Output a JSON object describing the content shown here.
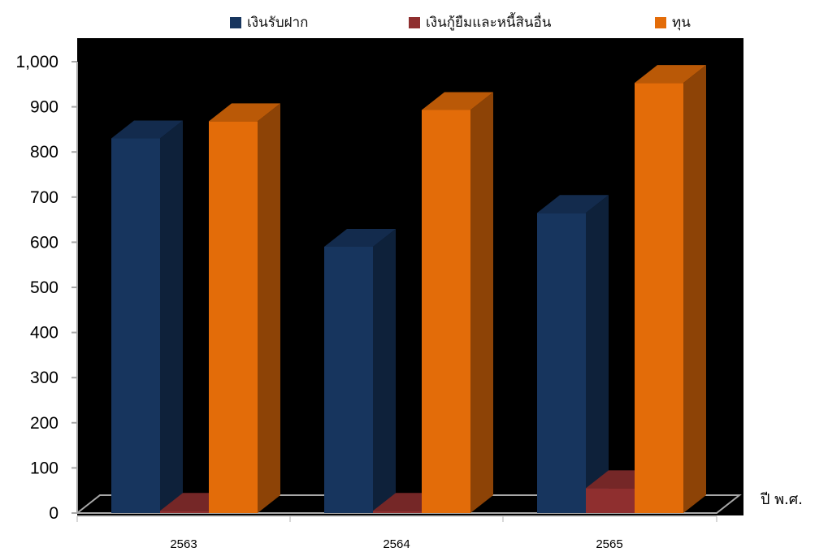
{
  "chart_data": {
    "type": "bar",
    "title": "",
    "xlabel": "ปี พ.ศ.",
    "ylabel": "",
    "categories": [
      "2563",
      "2564",
      "2565"
    ],
    "series": [
      {
        "name": "เงินรับฝาก",
        "values": [
          830,
          590,
          665
        ],
        "color": "#17355e"
      },
      {
        "name": "เงินกู้ยืมและหนี้สินอื่น",
        "values": [
          5,
          5,
          55
        ],
        "color": "#8f2f2f"
      },
      {
        "name": "ทุน",
        "values": [
          868,
          893,
          953
        ],
        "color": "#e36c09"
      }
    ],
    "yticks": [
      "0",
      "100",
      "200",
      "300",
      "400",
      "500",
      "600",
      "700",
      "800",
      "900",
      "1,000"
    ],
    "ylim": [
      0,
      1000
    ],
    "plot_background": "#000000",
    "legend_position": "top",
    "grid": false,
    "three_d": true
  }
}
